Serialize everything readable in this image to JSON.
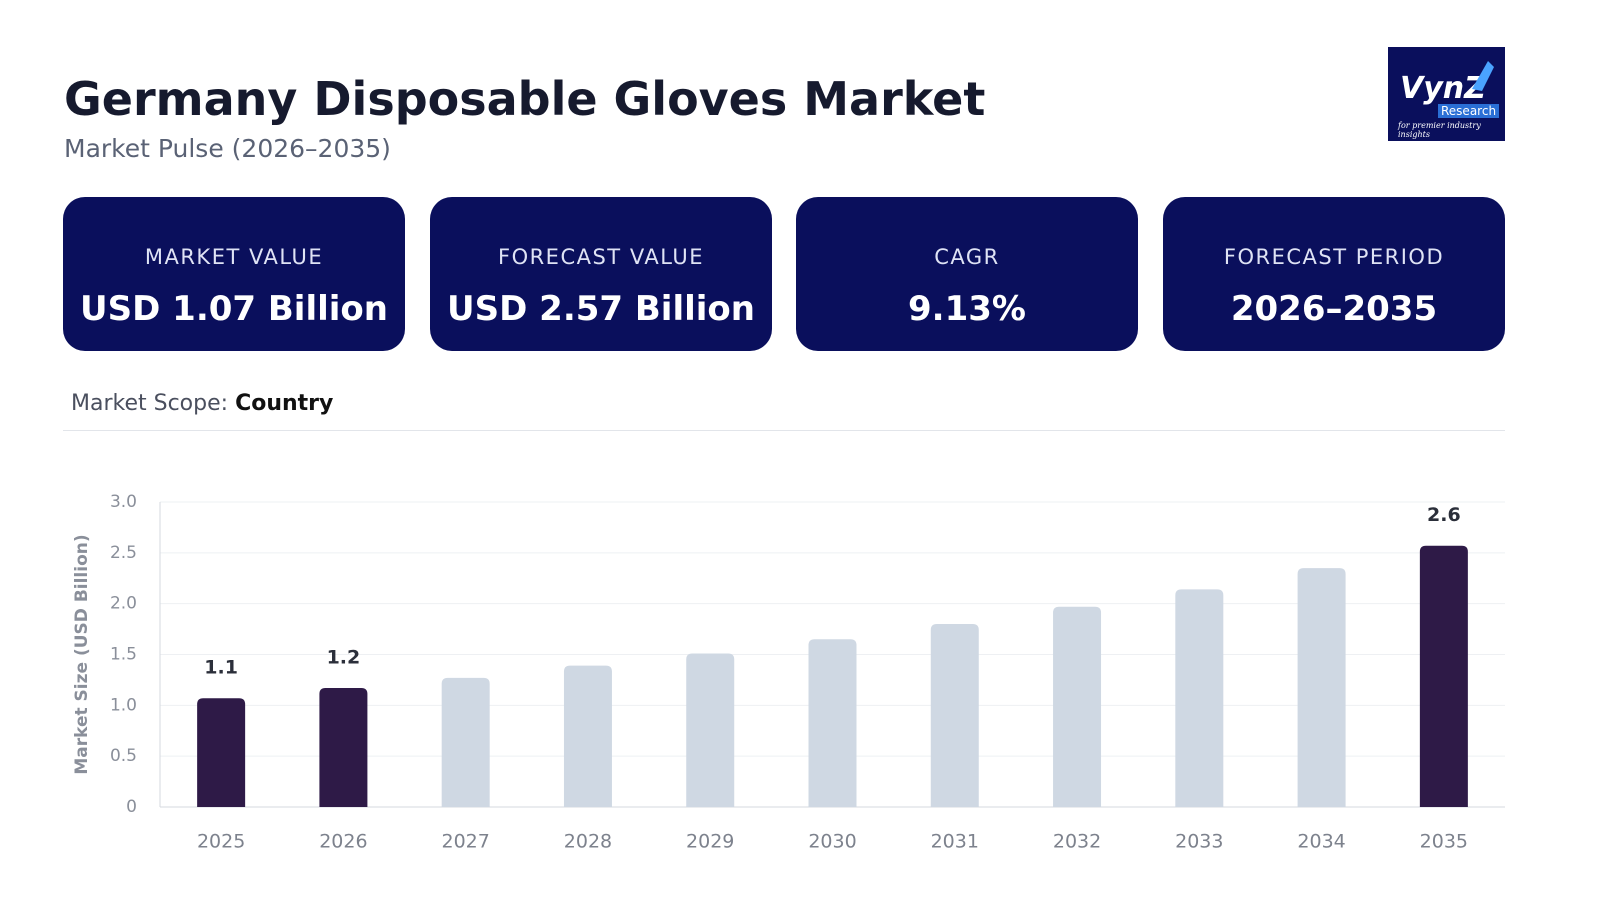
{
  "header": {
    "title": "Germany Disposable Gloves Market",
    "subtitle": "Market Pulse (2026–2035)"
  },
  "logo": {
    "name": "VynZ",
    "sub": "Research",
    "tagline": "for premier industry insights"
  },
  "cards": [
    {
      "label": "MARKET VALUE",
      "value": "USD 1.07 Billion"
    },
    {
      "label": "FORECAST VALUE",
      "value": "USD 2.57 Billion"
    },
    {
      "label": "CAGR",
      "value": "9.13%"
    },
    {
      "label": "FORECAST PERIOD",
      "value": "2026–2035"
    }
  ],
  "scope": {
    "label": "Market Scope:",
    "value": "Country"
  },
  "chart_data": {
    "type": "bar",
    "y_label": "Market Size (USD Billion)",
    "categories": [
      "2025",
      "2026",
      "2027",
      "2028",
      "2029",
      "2030",
      "2031",
      "2032",
      "2033",
      "2034",
      "2035"
    ],
    "values": [
      1.07,
      1.17,
      1.27,
      1.39,
      1.51,
      1.65,
      1.8,
      1.97,
      2.14,
      2.35,
      2.57
    ],
    "value_labels": [
      "1.1",
      "1.2",
      null,
      null,
      null,
      null,
      null,
      null,
      null,
      null,
      "2.6"
    ],
    "colors": [
      "#2e1a47",
      "#2e1a47",
      "#cfd8e3",
      "#cfd8e3",
      "#cfd8e3",
      "#cfd8e3",
      "#cfd8e3",
      "#cfd8e3",
      "#cfd8e3",
      "#cfd8e3",
      "#2e1a47"
    ],
    "ylim": [
      0,
      3
    ],
    "yticks": [
      0,
      0.5,
      {
        "value": 1,
        "label": "1.0"
      },
      1.5,
      {
        "value": 2,
        "label": "2.0"
      },
      2.5,
      {
        "value": 3,
        "label": "3.0"
      }
    ],
    "grid": true
  }
}
